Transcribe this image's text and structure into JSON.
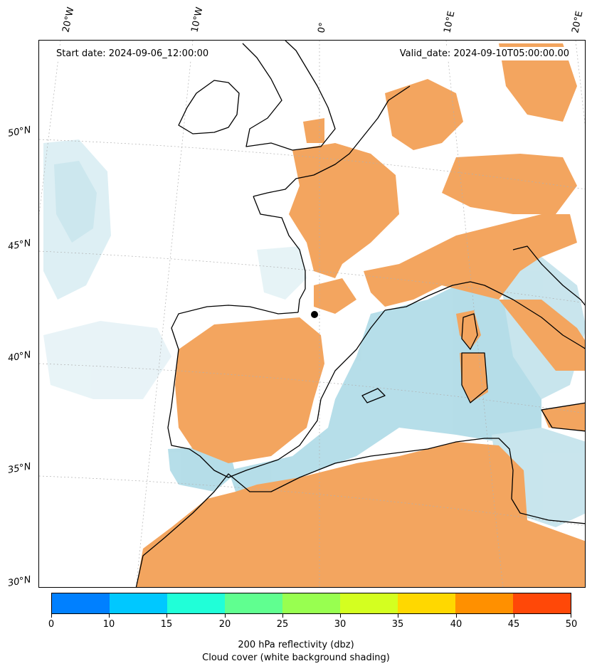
{
  "map": {
    "start_label": "Start date: 2024-09-06_12:00:00",
    "valid_label": "Valid_date: 2024-09-10T05:00:00.00",
    "lon_labels": [
      "20°W",
      "10°W",
      "0°",
      "10°E",
      "20°E"
    ],
    "lat_labels": [
      "50°N",
      "45°N",
      "40°N",
      "35°N",
      "30°N"
    ],
    "field_color": "#f3a55f",
    "cloud_color": "#a9d8e5",
    "coast_color": "#000000"
  },
  "colorbar": {
    "ticks": [
      "0",
      "10",
      "15",
      "20",
      "25",
      "30",
      "35",
      "40",
      "45",
      "50"
    ],
    "colors": [
      "#0080ff",
      "#00c8ff",
      "#20ffd8",
      "#60ff90",
      "#98ff50",
      "#d4ff20",
      "#ffd800",
      "#ff9000",
      "#ff4808"
    ],
    "label": "200 hPa reflectivity (dbz)",
    "sublabel": "Cloud cover (white background shading)"
  }
}
